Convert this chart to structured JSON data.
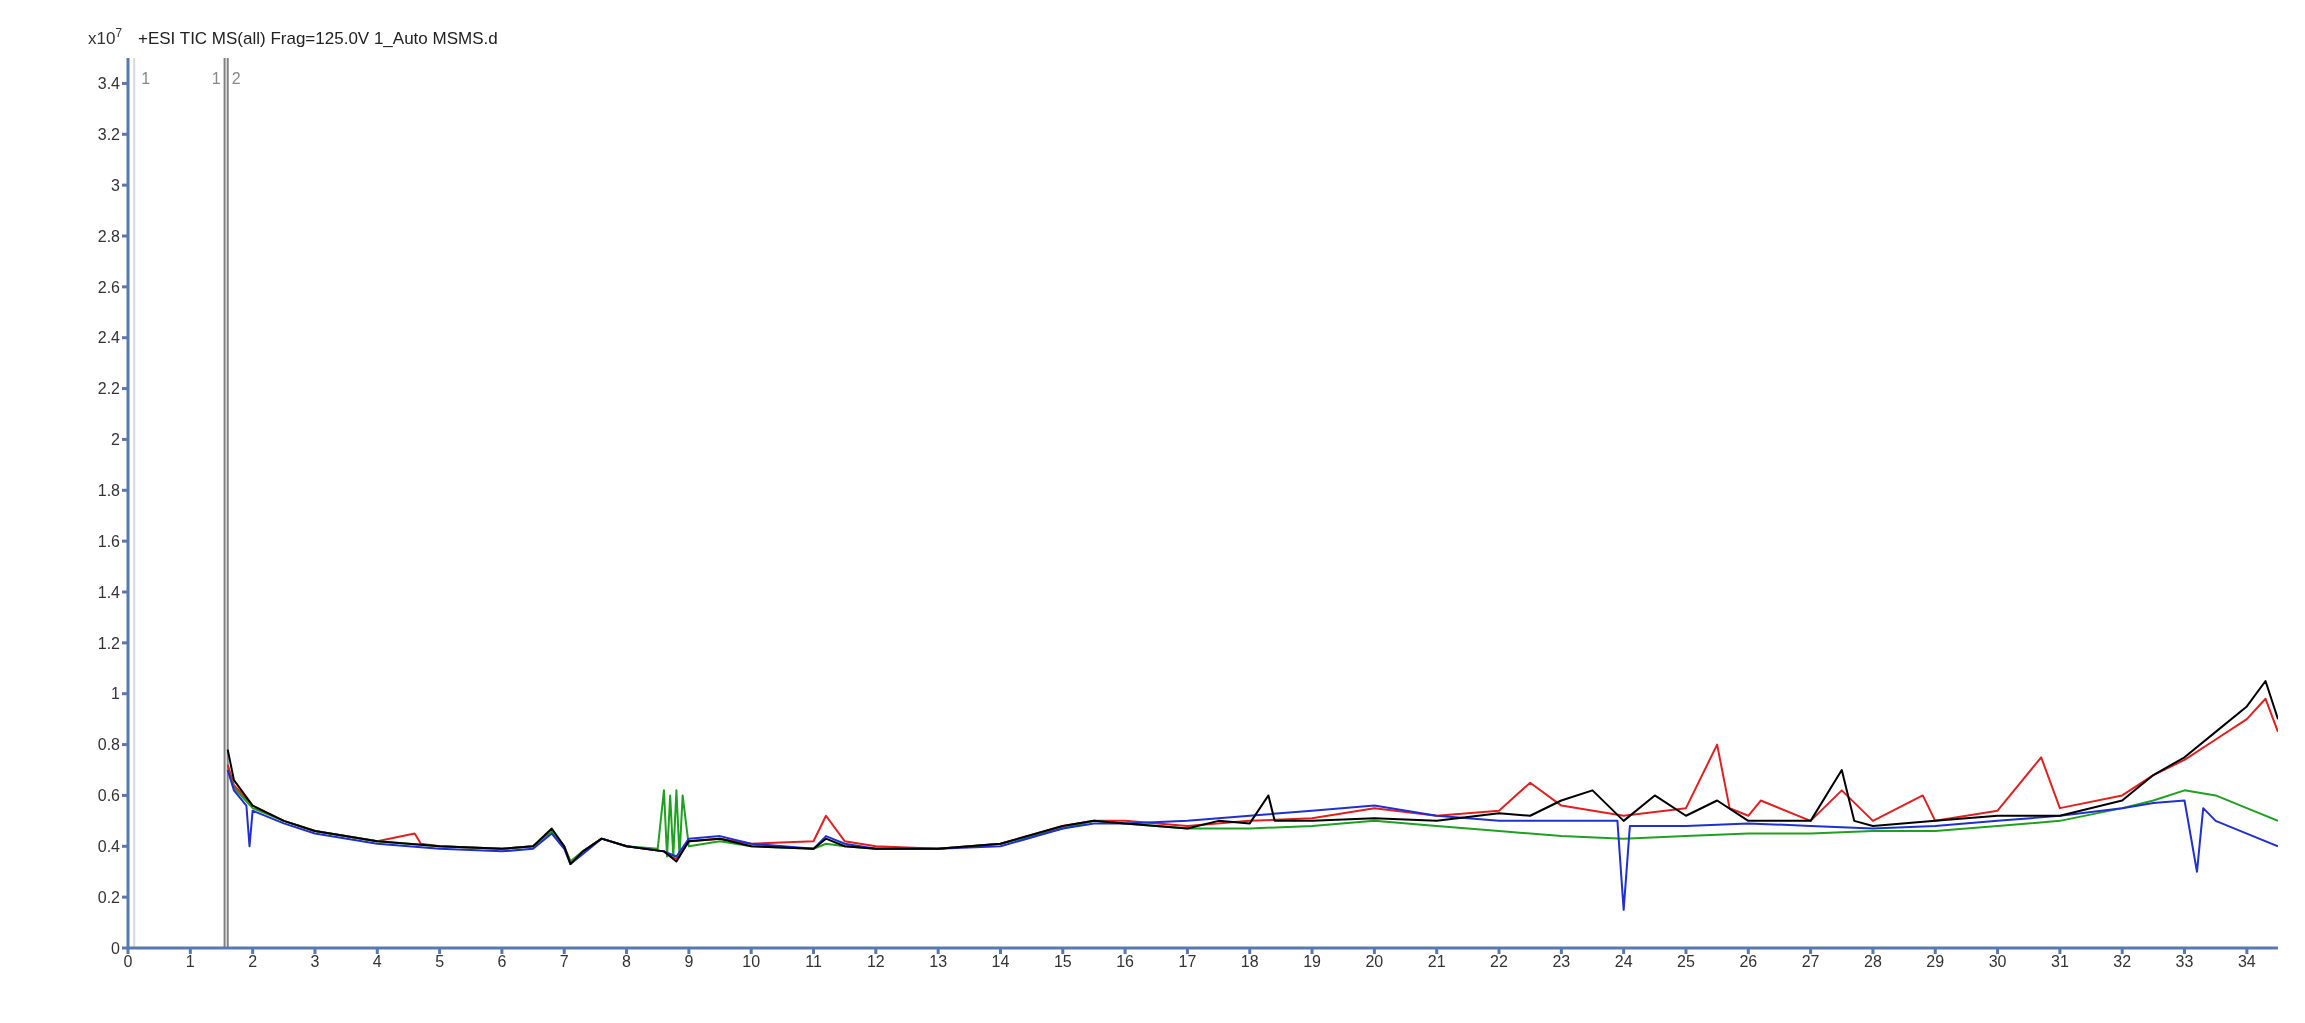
{
  "chart_data": {
    "type": "line",
    "title": "+ESI TIC MS(all) Frag=125.0V 1_Auto MSMS.d",
    "ylabel": "x10$^{7}$",
    "xlim": [
      0,
      34.5
    ],
    "xticks": [
      0,
      1,
      2,
      3,
      4,
      5,
      6,
      7,
      8,
      9,
      10,
      11,
      12,
      13,
      14,
      15,
      16,
      17,
      18,
      19,
      20,
      21,
      22,
      23,
      24,
      25,
      26,
      27,
      28,
      29,
      30,
      31,
      32,
      33,
      34
    ],
    "ylim": [
      0,
      3.5
    ],
    "yticks": [
      0,
      0.2,
      0.4,
      0.6,
      0.8,
      1,
      1.2,
      1.4,
      1.6,
      1.8,
      2,
      2.2,
      2.4,
      2.6,
      2.8,
      3,
      3.2,
      3.4
    ],
    "grid": false,
    "legend": false,
    "marker": "none",
    "line_style": "solid",
    "ref_lines": [
      {
        "axis": "x",
        "value": 0.1,
        "color": "#d8d8d8"
      },
      {
        "axis": "x",
        "value": 1.55,
        "color": "#808080"
      },
      {
        "axis": "x",
        "value": 1.6,
        "color": "#808080"
      }
    ],
    "annotations": [
      {
        "text": "1",
        "x": 0.15,
        "y": 3.42
      },
      {
        "text": "1",
        "x": 1.55,
        "y": 3.42
      },
      {
        "text": "2",
        "x": 1.6,
        "y": 3.42
      }
    ],
    "series": [
      {
        "color": "#e02020",
        "x": [
          1.6,
          1.7,
          2,
          2.5,
          3,
          4,
          4.6,
          4.7,
          5,
          6,
          6.5,
          6.8,
          7,
          7.1,
          7.3,
          7.6,
          8,
          8.6,
          8.8,
          9,
          9.5,
          10,
          11,
          11.2,
          11.5,
          12,
          13,
          14,
          15,
          15.5,
          16,
          17,
          18,
          19,
          20,
          21,
          22,
          22.5,
          23,
          24,
          25,
          25.5,
          25.7,
          26,
          26.2,
          27,
          27.5,
          28,
          28.8,
          29,
          30,
          30.7,
          31,
          32,
          32.5,
          33,
          33.5,
          34,
          34.3,
          34.5
        ],
        "values": [
          0.72,
          0.64,
          0.56,
          0.5,
          0.46,
          0.42,
          0.45,
          0.41,
          0.4,
          0.39,
          0.4,
          0.46,
          0.4,
          0.34,
          0.38,
          0.43,
          0.4,
          0.38,
          0.35,
          0.42,
          0.43,
          0.41,
          0.42,
          0.52,
          0.42,
          0.4,
          0.39,
          0.41,
          0.48,
          0.5,
          0.5,
          0.48,
          0.5,
          0.51,
          0.55,
          0.52,
          0.54,
          0.65,
          0.56,
          0.52,
          0.55,
          0.8,
          0.55,
          0.52,
          0.58,
          0.5,
          0.62,
          0.5,
          0.6,
          0.5,
          0.54,
          0.75,
          0.55,
          0.6,
          0.68,
          0.74,
          0.82,
          0.9,
          0.98,
          0.85
        ]
      },
      {
        "color": "#20a020",
        "x": [
          1.6,
          1.7,
          2,
          2.5,
          3,
          4,
          5,
          6,
          6.5,
          6.8,
          7,
          7.1,
          7.3,
          7.6,
          8,
          8.5,
          8.6,
          8.65,
          8.7,
          8.75,
          8.8,
          8.85,
          8.9,
          9,
          9.5,
          10,
          11,
          11.2,
          11.5,
          12,
          13,
          14,
          15,
          15.5,
          16,
          17,
          18,
          19,
          20,
          21,
          22,
          23,
          24,
          25,
          26,
          27,
          28,
          29,
          30,
          31,
          32,
          32.5,
          33,
          33.5,
          34,
          34.5
        ],
        "values": [
          0.7,
          0.63,
          0.55,
          0.5,
          0.46,
          0.42,
          0.4,
          0.39,
          0.4,
          0.46,
          0.4,
          0.34,
          0.38,
          0.43,
          0.4,
          0.39,
          0.62,
          0.36,
          0.6,
          0.36,
          0.62,
          0.36,
          0.6,
          0.4,
          0.42,
          0.4,
          0.39,
          0.41,
          0.4,
          0.39,
          0.39,
          0.41,
          0.47,
          0.5,
          0.49,
          0.47,
          0.47,
          0.48,
          0.5,
          0.48,
          0.46,
          0.44,
          0.43,
          0.44,
          0.45,
          0.45,
          0.46,
          0.46,
          0.48,
          0.5,
          0.55,
          0.58,
          0.62,
          0.6,
          0.55,
          0.5
        ]
      },
      {
        "color": "#2030d0",
        "x": [
          1.6,
          1.7,
          1.9,
          1.95,
          2,
          2.5,
          3,
          4,
          5,
          6,
          6.5,
          6.8,
          7,
          7.1,
          7.3,
          7.6,
          8,
          8.6,
          8.8,
          9,
          9.5,
          10,
          11,
          11.2,
          11.5,
          12,
          13,
          14,
          15,
          15.5,
          16,
          17,
          18,
          19,
          20,
          21,
          22,
          23,
          23.9,
          24,
          24.1,
          25,
          26,
          27,
          28,
          29,
          30,
          31,
          32,
          32.5,
          33,
          33.2,
          33.3,
          33.5,
          34,
          34.5
        ],
        "values": [
          0.7,
          0.62,
          0.56,
          0.4,
          0.54,
          0.49,
          0.45,
          0.41,
          0.39,
          0.38,
          0.39,
          0.45,
          0.39,
          0.33,
          0.37,
          0.43,
          0.4,
          0.38,
          0.36,
          0.43,
          0.44,
          0.41,
          0.39,
          0.44,
          0.41,
          0.39,
          0.39,
          0.4,
          0.47,
          0.49,
          0.49,
          0.5,
          0.52,
          0.54,
          0.56,
          0.52,
          0.5,
          0.5,
          0.5,
          0.15,
          0.48,
          0.48,
          0.49,
          0.48,
          0.47,
          0.48,
          0.5,
          0.52,
          0.55,
          0.57,
          0.58,
          0.3,
          0.55,
          0.5,
          0.45,
          0.4
        ]
      },
      {
        "color": "#000000",
        "x": [
          1.6,
          1.7,
          2,
          2.5,
          3,
          4,
          5,
          6,
          6.5,
          6.8,
          7,
          7.1,
          7.3,
          7.6,
          8,
          8.6,
          8.8,
          9,
          9.5,
          10,
          11,
          11.2,
          11.5,
          12,
          13,
          14,
          15,
          15.5,
          16,
          17,
          17.5,
          18,
          18.3,
          18.4,
          19,
          20,
          21,
          22,
          22.5,
          23,
          23.5,
          24,
          24.5,
          25,
          25.5,
          26,
          27,
          27.5,
          27.7,
          28,
          29,
          30,
          31,
          32,
          32.5,
          33,
          33.5,
          34,
          34.3,
          34.5
        ],
        "values": [
          0.78,
          0.66,
          0.56,
          0.5,
          0.46,
          0.42,
          0.4,
          0.39,
          0.4,
          0.47,
          0.4,
          0.33,
          0.38,
          0.43,
          0.4,
          0.38,
          0.34,
          0.42,
          0.43,
          0.4,
          0.39,
          0.43,
          0.4,
          0.39,
          0.39,
          0.41,
          0.48,
          0.5,
          0.49,
          0.47,
          0.5,
          0.49,
          0.6,
          0.5,
          0.5,
          0.51,
          0.5,
          0.53,
          0.52,
          0.58,
          0.62,
          0.5,
          0.6,
          0.52,
          0.58,
          0.5,
          0.5,
          0.7,
          0.5,
          0.48,
          0.5,
          0.52,
          0.52,
          0.58,
          0.68,
          0.75,
          0.85,
          0.95,
          1.05,
          0.9
        ]
      }
    ]
  }
}
